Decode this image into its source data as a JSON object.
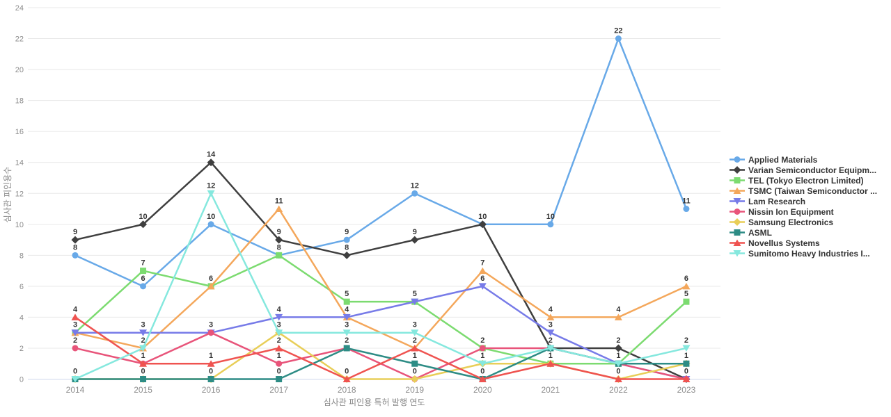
{
  "chart_data": {
    "type": "line",
    "title": "",
    "xlabel": "심사관 피인용 특허 발행 연도",
    "ylabel": "심사관 피인용수",
    "x": [
      2014,
      2015,
      2016,
      2017,
      2018,
      2019,
      2020,
      2021,
      2022,
      2023
    ],
    "ylim": [
      0,
      24
    ],
    "ytick_step": 2,
    "grid": true,
    "legend_position": "right",
    "colors": {
      "grid": "#e8e8e8",
      "baseline": "#ccd6eb",
      "tick_text": "#8c8c8c",
      "axis_title_text": "#888888",
      "value_label_text": "#333333",
      "legend_text": "#333333"
    },
    "series": [
      {
        "name": "Applied Materials",
        "color": "#68a9e8",
        "marker": "circle",
        "values": [
          8,
          6,
          10,
          8,
          9,
          12,
          10,
          10,
          22,
          11
        ]
      },
      {
        "name": "Varian Semiconductor Equipm...",
        "color": "#3f3f3f",
        "marker": "diamond",
        "values": [
          9,
          10,
          14,
          9,
          8,
          9,
          10,
          2,
          2,
          0
        ]
      },
      {
        "name": "TEL (Tokyo Electron Limited)",
        "color": "#7cdb70",
        "marker": "square",
        "values": [
          3,
          7,
          6,
          8,
          5,
          5,
          2,
          1,
          1,
          5
        ]
      },
      {
        "name": "TSMC (Taiwan Semiconductor ...",
        "color": "#f4a75b",
        "marker": "triangle-up",
        "values": [
          3,
          2,
          6,
          11,
          4,
          2,
          7,
          4,
          4,
          6
        ]
      },
      {
        "name": "Lam Research",
        "color": "#777be8",
        "marker": "triangle-down",
        "values": [
          3,
          3,
          3,
          4,
          4,
          5,
          6,
          3,
          1,
          0
        ]
      },
      {
        "name": "Nissin Ion Equipment",
        "color": "#e8547a",
        "marker": "circle",
        "values": [
          2,
          1,
          3,
          1,
          2,
          0,
          2,
          2,
          1,
          0
        ]
      },
      {
        "name": "Samsung Electronics",
        "color": "#e8ce58",
        "marker": "diamond",
        "values": [
          0,
          0,
          0,
          3,
          0,
          0,
          1,
          1,
          0,
          1
        ]
      },
      {
        "name": "ASML",
        "color": "#2d8c85",
        "marker": "square",
        "values": [
          0,
          0,
          0,
          0,
          2,
          1,
          0,
          2,
          1,
          1
        ]
      },
      {
        "name": "Novellus Systems",
        "color": "#ef5350",
        "marker": "triangle-up",
        "values": [
          4,
          1,
          1,
          2,
          0,
          2,
          0,
          1,
          0,
          0
        ]
      },
      {
        "name": "Sumitomo Heavy Industries I...",
        "color": "#85e8de",
        "marker": "triangle-down",
        "values": [
          0,
          2,
          12,
          3,
          3,
          3,
          1,
          2,
          1,
          2
        ]
      }
    ]
  }
}
